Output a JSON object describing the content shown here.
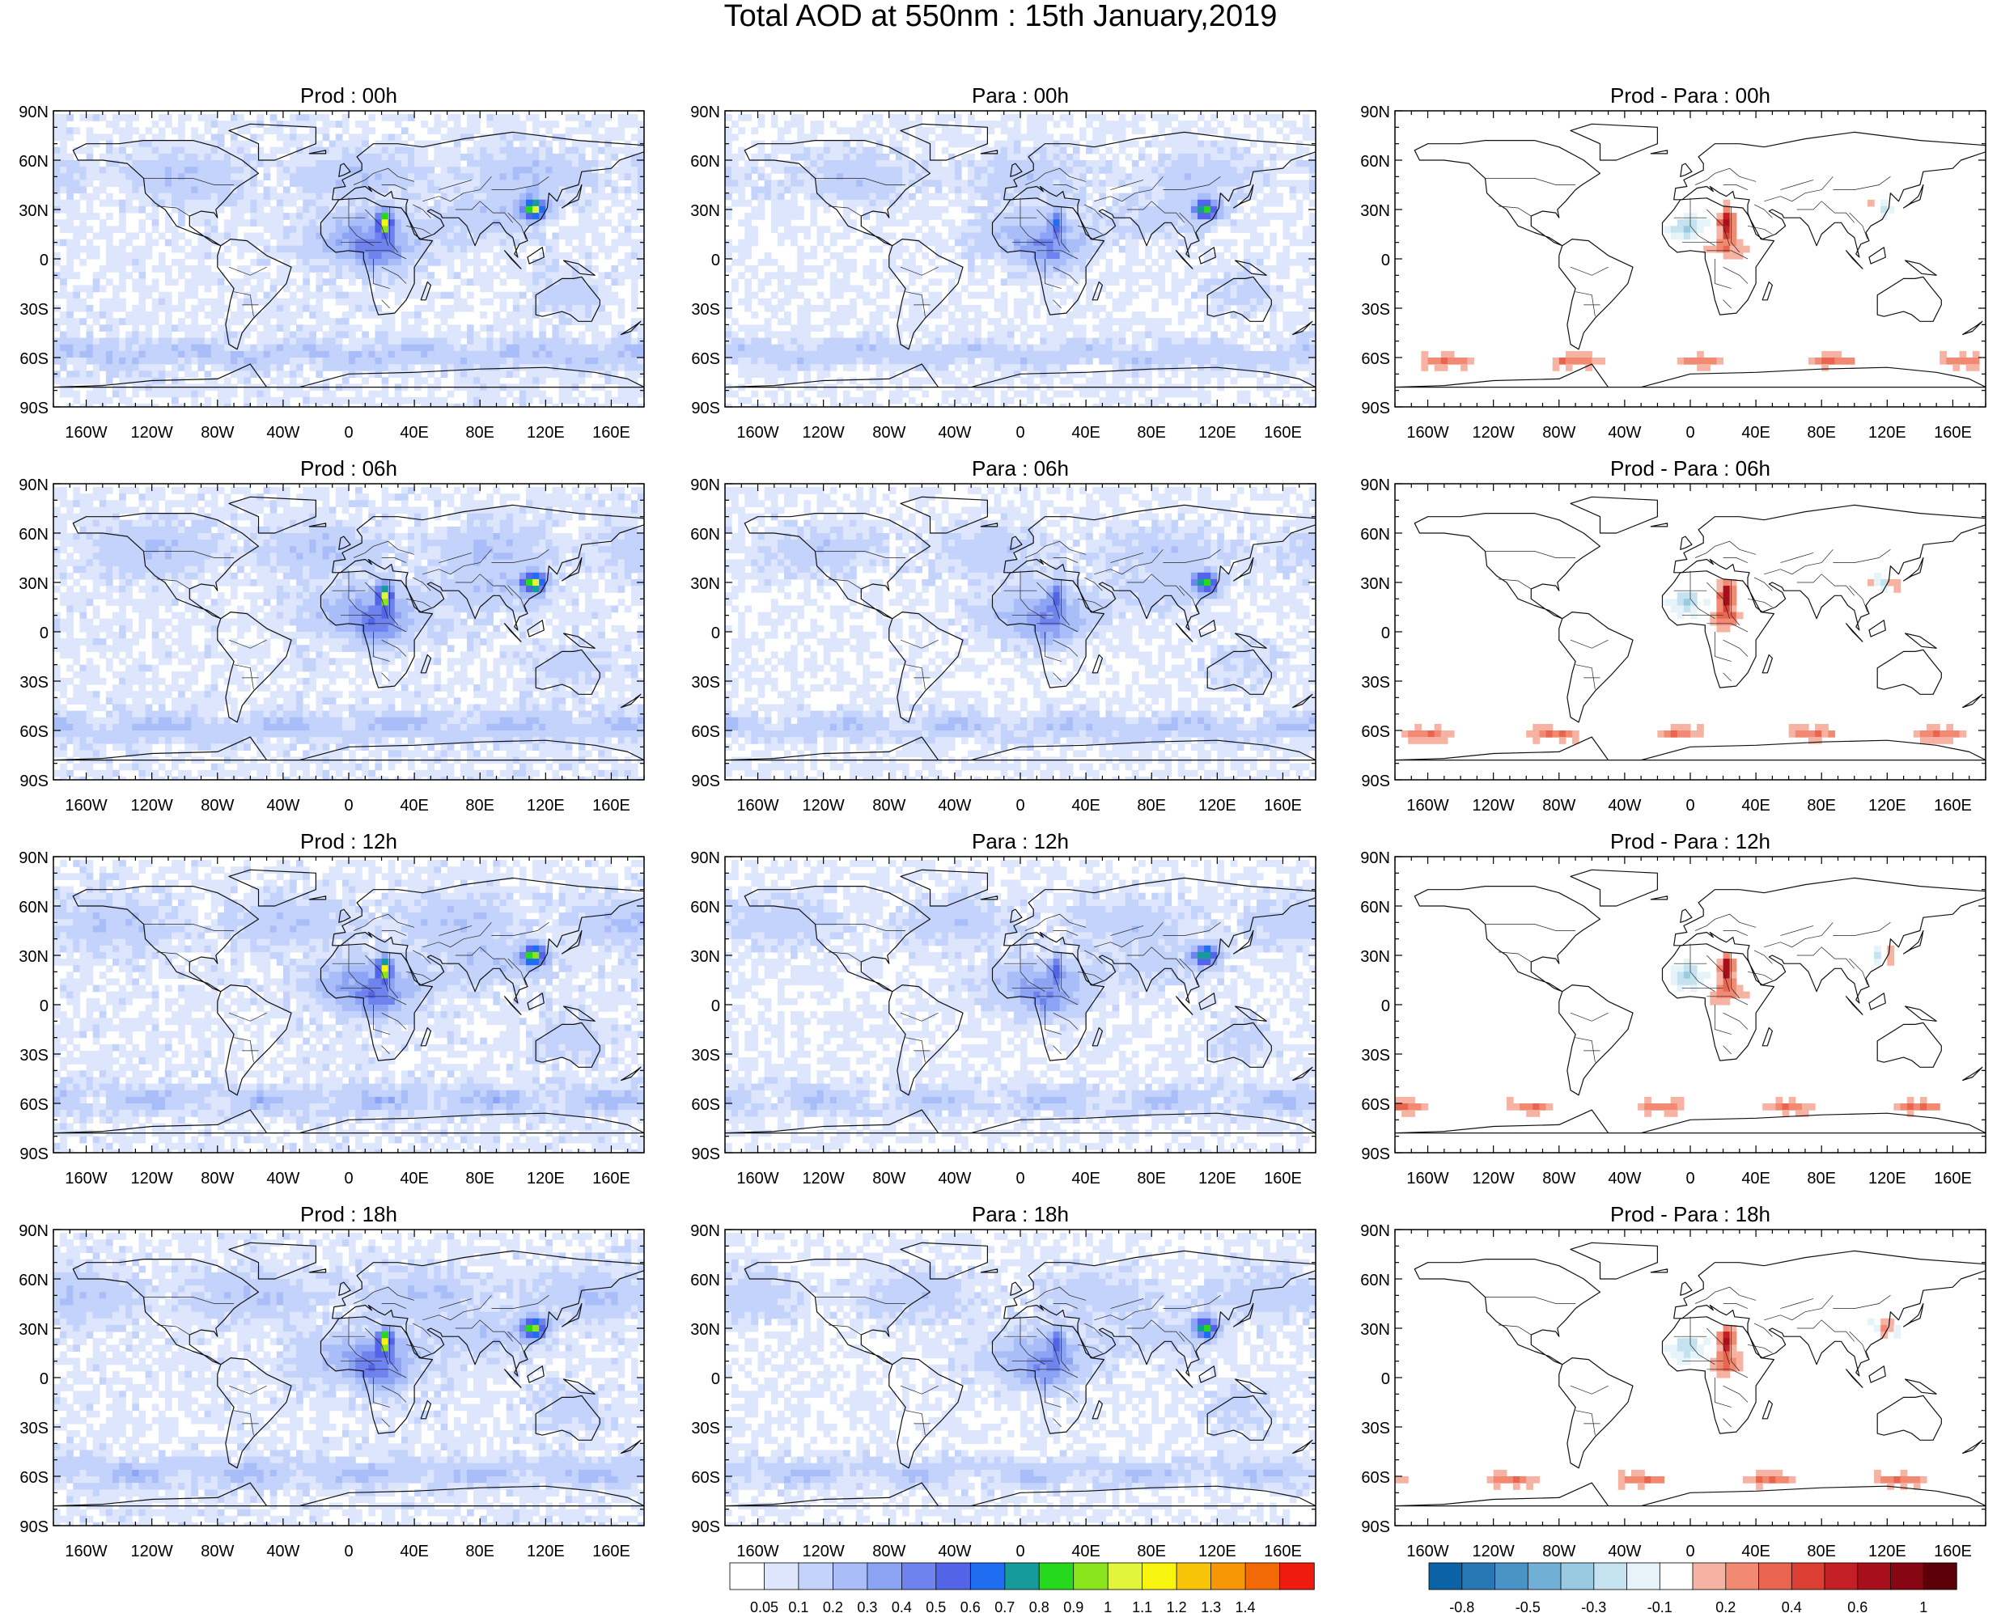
{
  "title": "Total AOD at 550nm : 15th January,2019",
  "columns": [
    "prod",
    "para",
    "diff"
  ],
  "panels": [
    {
      "title": "Prod : 00h",
      "kind": "prod",
      "hour": "00h"
    },
    {
      "title": "Para : 00h",
      "kind": "para",
      "hour": "00h"
    },
    {
      "title": "Prod - Para : 00h",
      "kind": "diff",
      "hour": "00h"
    },
    {
      "title": "Prod : 06h",
      "kind": "prod",
      "hour": "06h"
    },
    {
      "title": "Para : 06h",
      "kind": "para",
      "hour": "06h"
    },
    {
      "title": "Prod - Para : 06h",
      "kind": "diff",
      "hour": "06h"
    },
    {
      "title": "Prod : 12h",
      "kind": "prod",
      "hour": "12h"
    },
    {
      "title": "Para : 12h",
      "kind": "para",
      "hour": "12h"
    },
    {
      "title": "Prod - Para : 12h",
      "kind": "diff",
      "hour": "12h"
    },
    {
      "title": "Prod : 18h",
      "kind": "prod",
      "hour": "18h"
    },
    {
      "title": "Para : 18h",
      "kind": "para",
      "hour": "18h"
    },
    {
      "title": "Prod - Para : 18h",
      "kind": "diff",
      "hour": "18h"
    }
  ],
  "lat_ticks": [
    "90N",
    "60N",
    "30N",
    "0",
    "30S",
    "60S",
    "90S"
  ],
  "lon_ticks": [
    "160W",
    "120W",
    "80W",
    "40W",
    "0",
    "40E",
    "80E",
    "120E",
    "160E"
  ],
  "aod_colorbar": {
    "labels": [
      "0.05",
      "0.1",
      "0.2",
      "0.3",
      "0.4",
      "0.5",
      "0.6",
      "0.7",
      "0.8",
      "0.9",
      "1",
      "1.1",
      "1.2",
      "1.3",
      "1.4"
    ],
    "colors": [
      "#ffffff",
      "#dde6fc",
      "#c4d3fb",
      "#a9bdf9",
      "#8da4f4",
      "#6f83ee",
      "#5464e8",
      "#1f6ef2",
      "#159c9a",
      "#27d91c",
      "#8ae51c",
      "#e1f53a",
      "#f7f50f",
      "#f8c408",
      "#f79705",
      "#f26a05",
      "#ef1b0e"
    ]
  },
  "diff_colorbar": {
    "labels": [
      "-0.8",
      "-0.5",
      "-0.3",
      "-0.1",
      "0.2",
      "0.4",
      "0.6",
      "1"
    ],
    "colors": [
      "#0b63a6",
      "#2779b6",
      "#4a93c7",
      "#71afd6",
      "#9ac9e2",
      "#c4e2ef",
      "#e6f4fa",
      "#ffffff",
      "#f6b3a3",
      "#f28a73",
      "#ea6550",
      "#db3f33",
      "#c41f25",
      "#a70f1d",
      "#870613",
      "#5e0008"
    ]
  }
}
